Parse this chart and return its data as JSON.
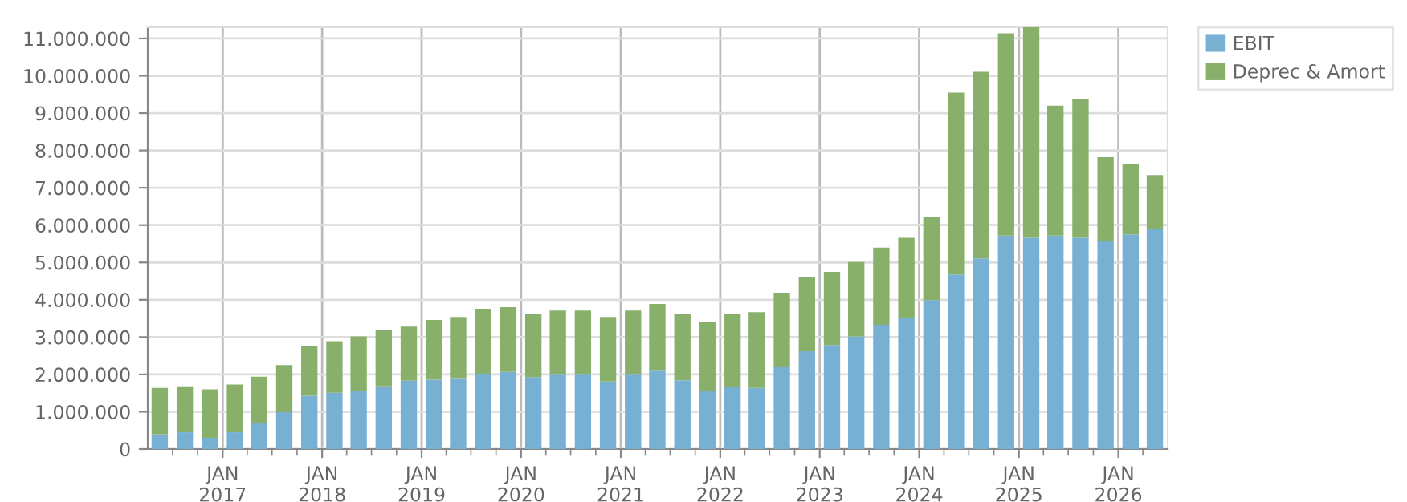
{
  "chart_data": {
    "type": "bar",
    "stacked": true,
    "x": [
      "2016-05-15",
      "2016-08-15",
      "2016-11-15",
      "2017-02-15",
      "2017-05-15",
      "2017-08-15",
      "2017-11-15",
      "2018-02-15",
      "2018-05-15",
      "2018-08-15",
      "2018-11-15",
      "2019-02-15",
      "2019-05-15",
      "2019-08-15",
      "2019-11-15",
      "2020-02-15",
      "2020-05-15",
      "2020-08-15",
      "2020-11-15",
      "2021-02-15",
      "2021-05-15",
      "2021-08-15",
      "2021-11-15",
      "2022-02-15",
      "2022-05-15",
      "2022-08-15",
      "2022-11-15",
      "2023-02-15",
      "2023-05-15",
      "2023-08-15",
      "2023-11-15",
      "2024-02-15",
      "2024-05-15",
      "2024-08-15",
      "2024-11-15",
      "2025-02-15",
      "2025-05-15",
      "2025-08-15",
      "2025-11-15",
      "2026-02-15",
      "2026-05-15"
    ],
    "series": [
      {
        "name": "EBIT",
        "color": "#77b0d2",
        "values": [
          390000,
          450000,
          300000,
          450000,
          710000,
          990000,
          1430000,
          1510000,
          1560000,
          1680000,
          1830000,
          1860000,
          1900000,
          2020000,
          2070000,
          1930000,
          1990000,
          1990000,
          1810000,
          1990000,
          2100000,
          1840000,
          1560000,
          1670000,
          1640000,
          2190000,
          2620000,
          2790000,
          3020000,
          3330000,
          3500000,
          3990000,
          4680000,
          5110000,
          5720000,
          5660000,
          5720000,
          5660000,
          5570000,
          5750000,
          5890000
        ]
      },
      {
        "name": "Deprec & Amort",
        "color": "#88b06a",
        "values": [
          1250000,
          1230000,
          1300000,
          1280000,
          1230000,
          1260000,
          1330000,
          1380000,
          1460000,
          1520000,
          1450000,
          1600000,
          1640000,
          1740000,
          1730000,
          1700000,
          1720000,
          1720000,
          1730000,
          1720000,
          1790000,
          1790000,
          1850000,
          1960000,
          2030000,
          2000000,
          2000000,
          1960000,
          1990000,
          2070000,
          2160000,
          2230000,
          4870000,
          5000000,
          5420000,
          5660000,
          3480000,
          3710000,
          2250000,
          1900000,
          1450000
        ]
      }
    ],
    "xlim": [
      "2016-04-01",
      "2026-07-01"
    ],
    "xticks": [
      {
        "value": "2016-07-01",
        "label": null
      },
      {
        "value": "2016-10-01",
        "label": null
      },
      {
        "value": "2017-01-01",
        "label": "JAN\n2017"
      },
      {
        "value": "2017-04-01",
        "label": null
      },
      {
        "value": "2017-07-01",
        "label": null
      },
      {
        "value": "2017-10-01",
        "label": null
      },
      {
        "value": "2018-01-01",
        "label": "JAN\n2018"
      },
      {
        "value": "2018-04-01",
        "label": null
      },
      {
        "value": "2018-07-01",
        "label": null
      },
      {
        "value": "2018-10-01",
        "label": null
      },
      {
        "value": "2019-01-01",
        "label": "JAN\n2019"
      },
      {
        "value": "2019-04-01",
        "label": null
      },
      {
        "value": "2019-07-01",
        "label": null
      },
      {
        "value": "2019-10-01",
        "label": null
      },
      {
        "value": "2020-01-01",
        "label": "JAN\n2020"
      },
      {
        "value": "2020-04-01",
        "label": null
      },
      {
        "value": "2020-07-01",
        "label": null
      },
      {
        "value": "2020-10-01",
        "label": null
      },
      {
        "value": "2021-01-01",
        "label": "JAN\n2021"
      },
      {
        "value": "2021-04-01",
        "label": null
      },
      {
        "value": "2021-07-01",
        "label": null
      },
      {
        "value": "2021-10-01",
        "label": null
      },
      {
        "value": "2022-01-01",
        "label": "JAN\n2022"
      },
      {
        "value": "2022-04-01",
        "label": null
      },
      {
        "value": "2022-07-01",
        "label": null
      },
      {
        "value": "2022-10-01",
        "label": null
      },
      {
        "value": "2023-01-01",
        "label": "JAN\n2023"
      },
      {
        "value": "2023-04-01",
        "label": null
      },
      {
        "value": "2023-07-01",
        "label": null
      },
      {
        "value": "2023-10-01",
        "label": null
      },
      {
        "value": "2024-01-01",
        "label": "JAN\n2024"
      },
      {
        "value": "2024-04-01",
        "label": null
      },
      {
        "value": "2024-07-01",
        "label": null
      },
      {
        "value": "2024-10-01",
        "label": null
      },
      {
        "value": "2025-01-01",
        "label": "JAN\n2025"
      },
      {
        "value": "2025-04-01",
        "label": null
      },
      {
        "value": "2025-07-01",
        "label": null
      },
      {
        "value": "2025-10-01",
        "label": null
      },
      {
        "value": "2026-01-01",
        "label": "JAN\n2026"
      },
      {
        "value": "2026-04-01",
        "label": null
      }
    ],
    "ylim": [
      0,
      11300000
    ],
    "yticks": [
      0,
      {
        "value": 1000000,
        "label": "1.000.000"
      },
      {
        "value": 2000000,
        "label": "2.000.000"
      },
      {
        "value": 3000000,
        "label": "3.000.000"
      },
      {
        "value": 4000000,
        "label": "4.000.000"
      },
      {
        "value": 5000000,
        "label": "5.000.000"
      },
      {
        "value": 6000000,
        "label": "6.000.000"
      },
      {
        "value": 7000000,
        "label": "7.000.000"
      },
      {
        "value": 8000000,
        "label": "8.000.000"
      },
      {
        "value": 9000000,
        "label": "9.000.000"
      },
      {
        "value": 10000000,
        "label": "10.000.000"
      },
      {
        "value": 11000000,
        "label": "11.000.000"
      }
    ],
    "grid": true,
    "legend": "top right"
  }
}
